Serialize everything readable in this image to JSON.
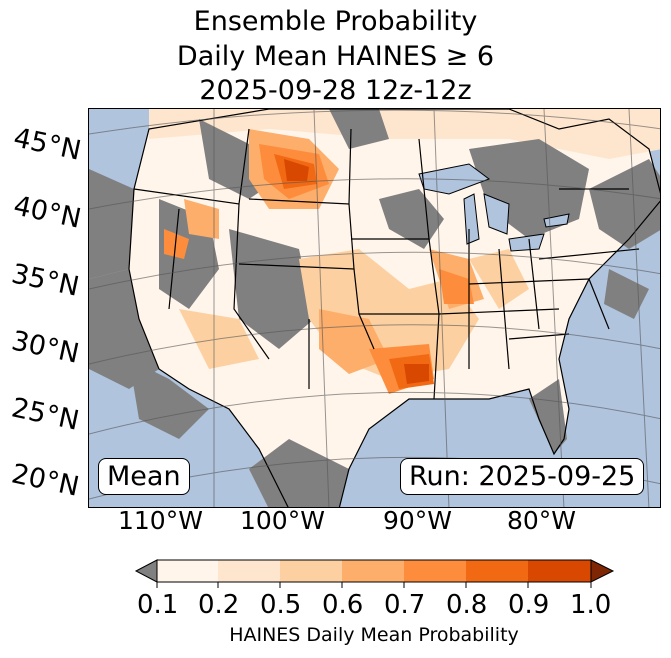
{
  "title": {
    "line1": "Ensemble Probability",
    "line2": "Daily Mean HAINES ≥ 6",
    "line3": "2025-09-28 12z-12z"
  },
  "map": {
    "lat_labels": [
      "45°N",
      "40°N",
      "35°N",
      "30°N",
      "25°N",
      "20°N"
    ],
    "lon_labels": [
      "110°W",
      "100°W",
      "90°W",
      "80°W"
    ],
    "stat_box": "Mean",
    "run_box": "Run: 2025-09-25",
    "colors": {
      "ocean": "#b0c4de",
      "no_data": "#808080",
      "land_low": "#fff5eb",
      "lake": "#b0c4de"
    }
  },
  "colorbar": {
    "title": "HAINES Daily Mean Probability",
    "ticks": [
      "0.1",
      "0.2",
      "0.5",
      "0.6",
      "0.7",
      "0.8",
      "0.9",
      "1.0"
    ],
    "under_color": "#808080",
    "over_color": "#7f2704",
    "bins": [
      {
        "range": "0.1-0.2",
        "color": "#fff5eb"
      },
      {
        "range": "0.2-0.5",
        "color": "#fee6ce"
      },
      {
        "range": "0.5-0.6",
        "color": "#fdd0a2"
      },
      {
        "range": "0.6-0.7",
        "color": "#fdae6b"
      },
      {
        "range": "0.7-0.8",
        "color": "#fd8d3c"
      },
      {
        "range": "0.8-0.9",
        "color": "#f16913"
      },
      {
        "range": "0.9-1.0",
        "color": "#d94801"
      }
    ]
  }
}
